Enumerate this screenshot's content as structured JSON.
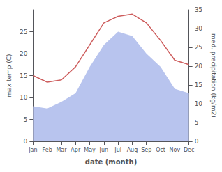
{
  "chart_data": {
    "type": "line",
    "xlabel": "date (month)",
    "ylabel": "max temp (C)",
    "y2label": "med. precipitation (kg/m2)",
    "categories": [
      "Jan",
      "Feb",
      "Mar",
      "Apr",
      "May",
      "Jun",
      "Jul",
      "Aug",
      "Sep",
      "Oct",
      "Nov",
      "Dec"
    ],
    "series": [
      {
        "type": "area",
        "color": "#b8c4ee",
        "values": [
          8.0,
          7.5,
          9.0,
          11.0,
          17.0,
          22.0,
          25.0,
          24.0,
          20.0,
          17.0,
          12.0,
          11.0
        ]
      },
      {
        "type": "line",
        "color": "#cd5c5c",
        "values": [
          15.0,
          13.5,
          14.0,
          17.0,
          22.0,
          27.0,
          28.5,
          29.0,
          27.0,
          23.0,
          18.5,
          17.5
        ]
      }
    ],
    "ylim": [
      0,
      30
    ],
    "yticks": [
      0,
      5,
      10,
      15,
      20,
      25
    ],
    "y2lim": [
      0,
      35
    ],
    "y2ticks": [
      0,
      5,
      10,
      15,
      20,
      25,
      30,
      35
    ],
    "grid": false
  }
}
